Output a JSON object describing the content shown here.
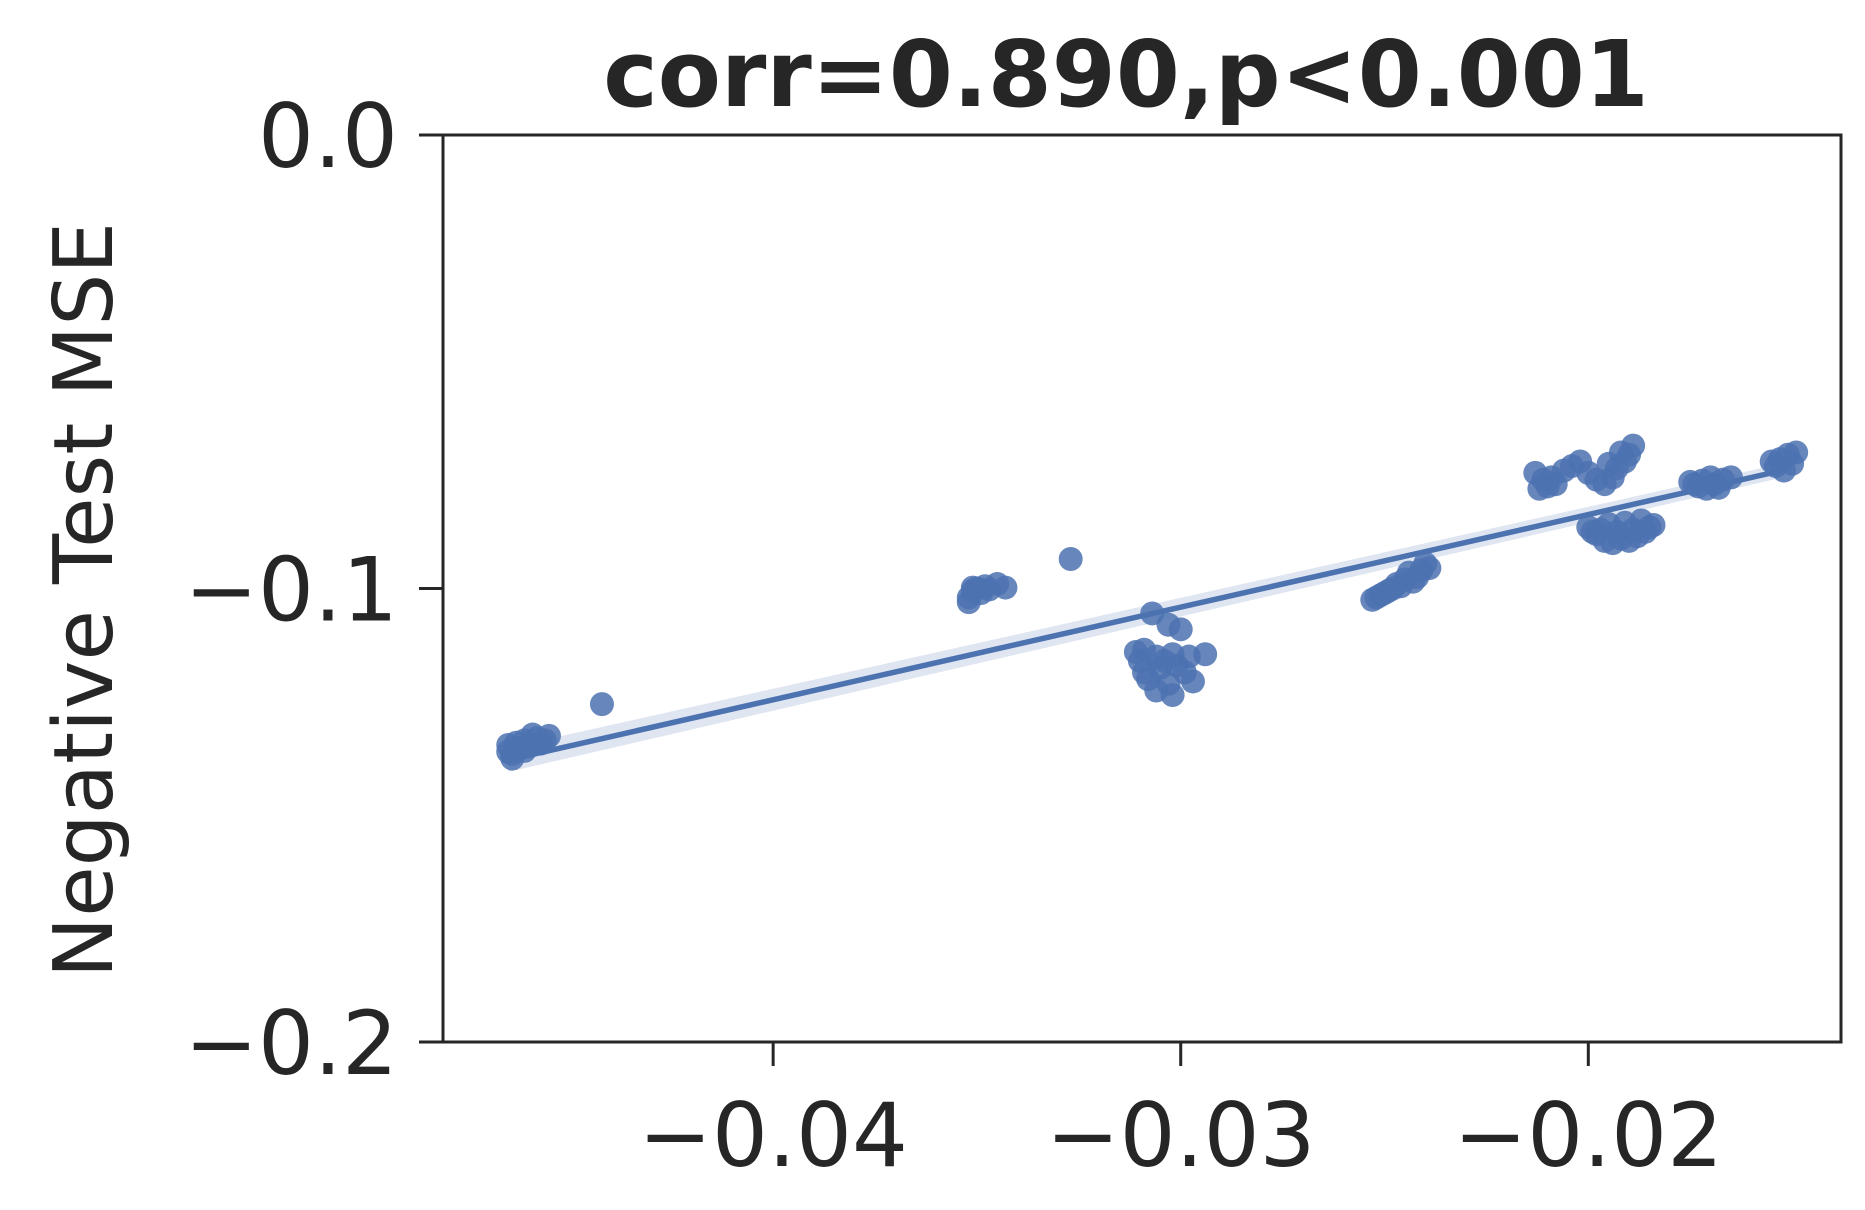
{
  "chart_data": {
    "type": "scatter",
    "title": "corr=0.890,p<0.001",
    "xlabel": "",
    "ylabel": "Negative Test MSE",
    "xlim": [
      -0.0481,
      -0.0138
    ],
    "ylim": [
      -0.2,
      0.0
    ],
    "x_ticks": [
      {
        "value": -0.04,
        "label": "−0.04"
      },
      {
        "value": -0.03,
        "label": "−0.03"
      },
      {
        "value": -0.02,
        "label": "−0.02"
      }
    ],
    "y_ticks": [
      {
        "value": 0.0,
        "label": "0.0"
      },
      {
        "value": -0.1,
        "label": "−0.1"
      },
      {
        "value": -0.2,
        "label": "−0.2"
      }
    ],
    "grid": false,
    "color": "#4c72b0",
    "regression_line": {
      "x": [
        -0.0465,
        -0.0153
      ],
      "y": [
        -0.1378,
        -0.0741
      ]
    },
    "series": [
      {
        "points": [
          [
            -0.0465,
            -0.136
          ],
          [
            -0.0464,
            -0.1375
          ],
          [
            -0.0465,
            -0.1345
          ],
          [
            -0.0463,
            -0.134
          ],
          [
            -0.0461,
            -0.1335
          ],
          [
            -0.046,
            -0.1348
          ],
          [
            -0.0458,
            -0.133
          ],
          [
            -0.0457,
            -0.1342
          ],
          [
            -0.0455,
            -0.1325
          ],
          [
            -0.0462,
            -0.1352
          ],
          [
            -0.0459,
            -0.1322
          ],
          [
            -0.0456,
            -0.1335
          ],
          [
            -0.0464,
            -0.1365
          ],
          [
            -0.0461,
            -0.1358
          ],
          [
            -0.0442,
            -0.1255
          ],
          [
            -0.0352,
            -0.102
          ],
          [
            -0.0351,
            -0.1005
          ],
          [
            -0.035,
            -0.1
          ],
          [
            -0.0349,
            -0.101
          ],
          [
            -0.0351,
            -0.0998
          ],
          [
            -0.0348,
            -0.0995
          ],
          [
            -0.0347,
            -0.1002
          ],
          [
            -0.0352,
            -0.103
          ],
          [
            -0.0345,
            -0.099
          ],
          [
            -0.0343,
            -0.0998
          ],
          [
            -0.0327,
            -0.0935
          ],
          [
            -0.0307,
            -0.1055
          ],
          [
            -0.0303,
            -0.108
          ],
          [
            -0.03,
            -0.109
          ],
          [
            -0.0309,
            -0.1135
          ],
          [
            -0.0311,
            -0.114
          ],
          [
            -0.0306,
            -0.115
          ],
          [
            -0.0302,
            -0.1145
          ],
          [
            -0.0298,
            -0.115
          ],
          [
            -0.031,
            -0.116
          ],
          [
            -0.0305,
            -0.1175
          ],
          [
            -0.0301,
            -0.117
          ],
          [
            -0.0308,
            -0.12
          ],
          [
            -0.0303,
            -0.121
          ],
          [
            -0.0297,
            -0.1205
          ],
          [
            -0.0306,
            -0.1225
          ],
          [
            -0.0302,
            -0.1235
          ],
          [
            -0.0299,
            -0.1185
          ],
          [
            -0.0294,
            -0.1145
          ],
          [
            -0.0304,
            -0.116
          ],
          [
            -0.0309,
            -0.1185
          ],
          [
            -0.0253,
            -0.1025
          ],
          [
            -0.0251,
            -0.1015
          ],
          [
            -0.025,
            -0.101
          ],
          [
            -0.0248,
            -0.1
          ],
          [
            -0.0247,
            -0.099
          ],
          [
            -0.0245,
            -0.098
          ],
          [
            -0.0244,
            -0.0965
          ],
          [
            -0.0242,
            -0.0975
          ],
          [
            -0.0241,
            -0.096
          ],
          [
            -0.024,
            -0.0945
          ],
          [
            -0.0239,
            -0.0955
          ],
          [
            -0.0246,
            -0.0995
          ],
          [
            -0.0252,
            -0.102
          ],
          [
            -0.0249,
            -0.1005
          ],
          [
            -0.0243,
            -0.0985
          ],
          [
            -0.0213,
            -0.0745
          ],
          [
            -0.0211,
            -0.076
          ],
          [
            -0.021,
            -0.0775
          ],
          [
            -0.0212,
            -0.078
          ],
          [
            -0.0208,
            -0.077
          ],
          [
            -0.0206,
            -0.074
          ],
          [
            -0.0204,
            -0.073
          ],
          [
            -0.0202,
            -0.072
          ],
          [
            -0.02,
            -0.0745
          ],
          [
            -0.0198,
            -0.076
          ],
          [
            -0.0196,
            -0.077
          ],
          [
            -0.0194,
            -0.0755
          ],
          [
            -0.0193,
            -0.0735
          ],
          [
            -0.0191,
            -0.072
          ],
          [
            -0.019,
            -0.0705
          ],
          [
            -0.0189,
            -0.0685
          ],
          [
            -0.0192,
            -0.07
          ],
          [
            -0.0195,
            -0.0725
          ],
          [
            -0.0209,
            -0.0755
          ],
          [
            -0.02,
            -0.0865
          ],
          [
            -0.0198,
            -0.088
          ],
          [
            -0.0196,
            -0.0895
          ],
          [
            -0.0194,
            -0.09
          ],
          [
            -0.0192,
            -0.089
          ],
          [
            -0.019,
            -0.0895
          ],
          [
            -0.0188,
            -0.0885
          ],
          [
            -0.0186,
            -0.0875
          ],
          [
            -0.0184,
            -0.086
          ],
          [
            -0.0197,
            -0.087
          ],
          [
            -0.0193,
            -0.0875
          ],
          [
            -0.0189,
            -0.087
          ],
          [
            -0.0185,
            -0.0865
          ],
          [
            -0.0191,
            -0.0855
          ],
          [
            -0.0187,
            -0.085
          ],
          [
            -0.0195,
            -0.0858
          ],
          [
            -0.0199,
            -0.0875
          ],
          [
            -0.0175,
            -0.0765
          ],
          [
            -0.0173,
            -0.0775
          ],
          [
            -0.0171,
            -0.078
          ],
          [
            -0.0169,
            -0.077
          ],
          [
            -0.0167,
            -0.076
          ],
          [
            -0.0165,
            -0.0755
          ],
          [
            -0.017,
            -0.0755
          ],
          [
            -0.0172,
            -0.0762
          ],
          [
            -0.0168,
            -0.0778
          ],
          [
            -0.0174,
            -0.077
          ],
          [
            -0.0155,
            -0.072
          ],
          [
            -0.0153,
            -0.0715
          ],
          [
            -0.0151,
            -0.0705
          ],
          [
            -0.0149,
            -0.07
          ],
          [
            -0.0152,
            -0.074
          ],
          [
            -0.015,
            -0.0725
          ],
          [
            -0.0154,
            -0.073
          ]
        ]
      }
    ]
  }
}
